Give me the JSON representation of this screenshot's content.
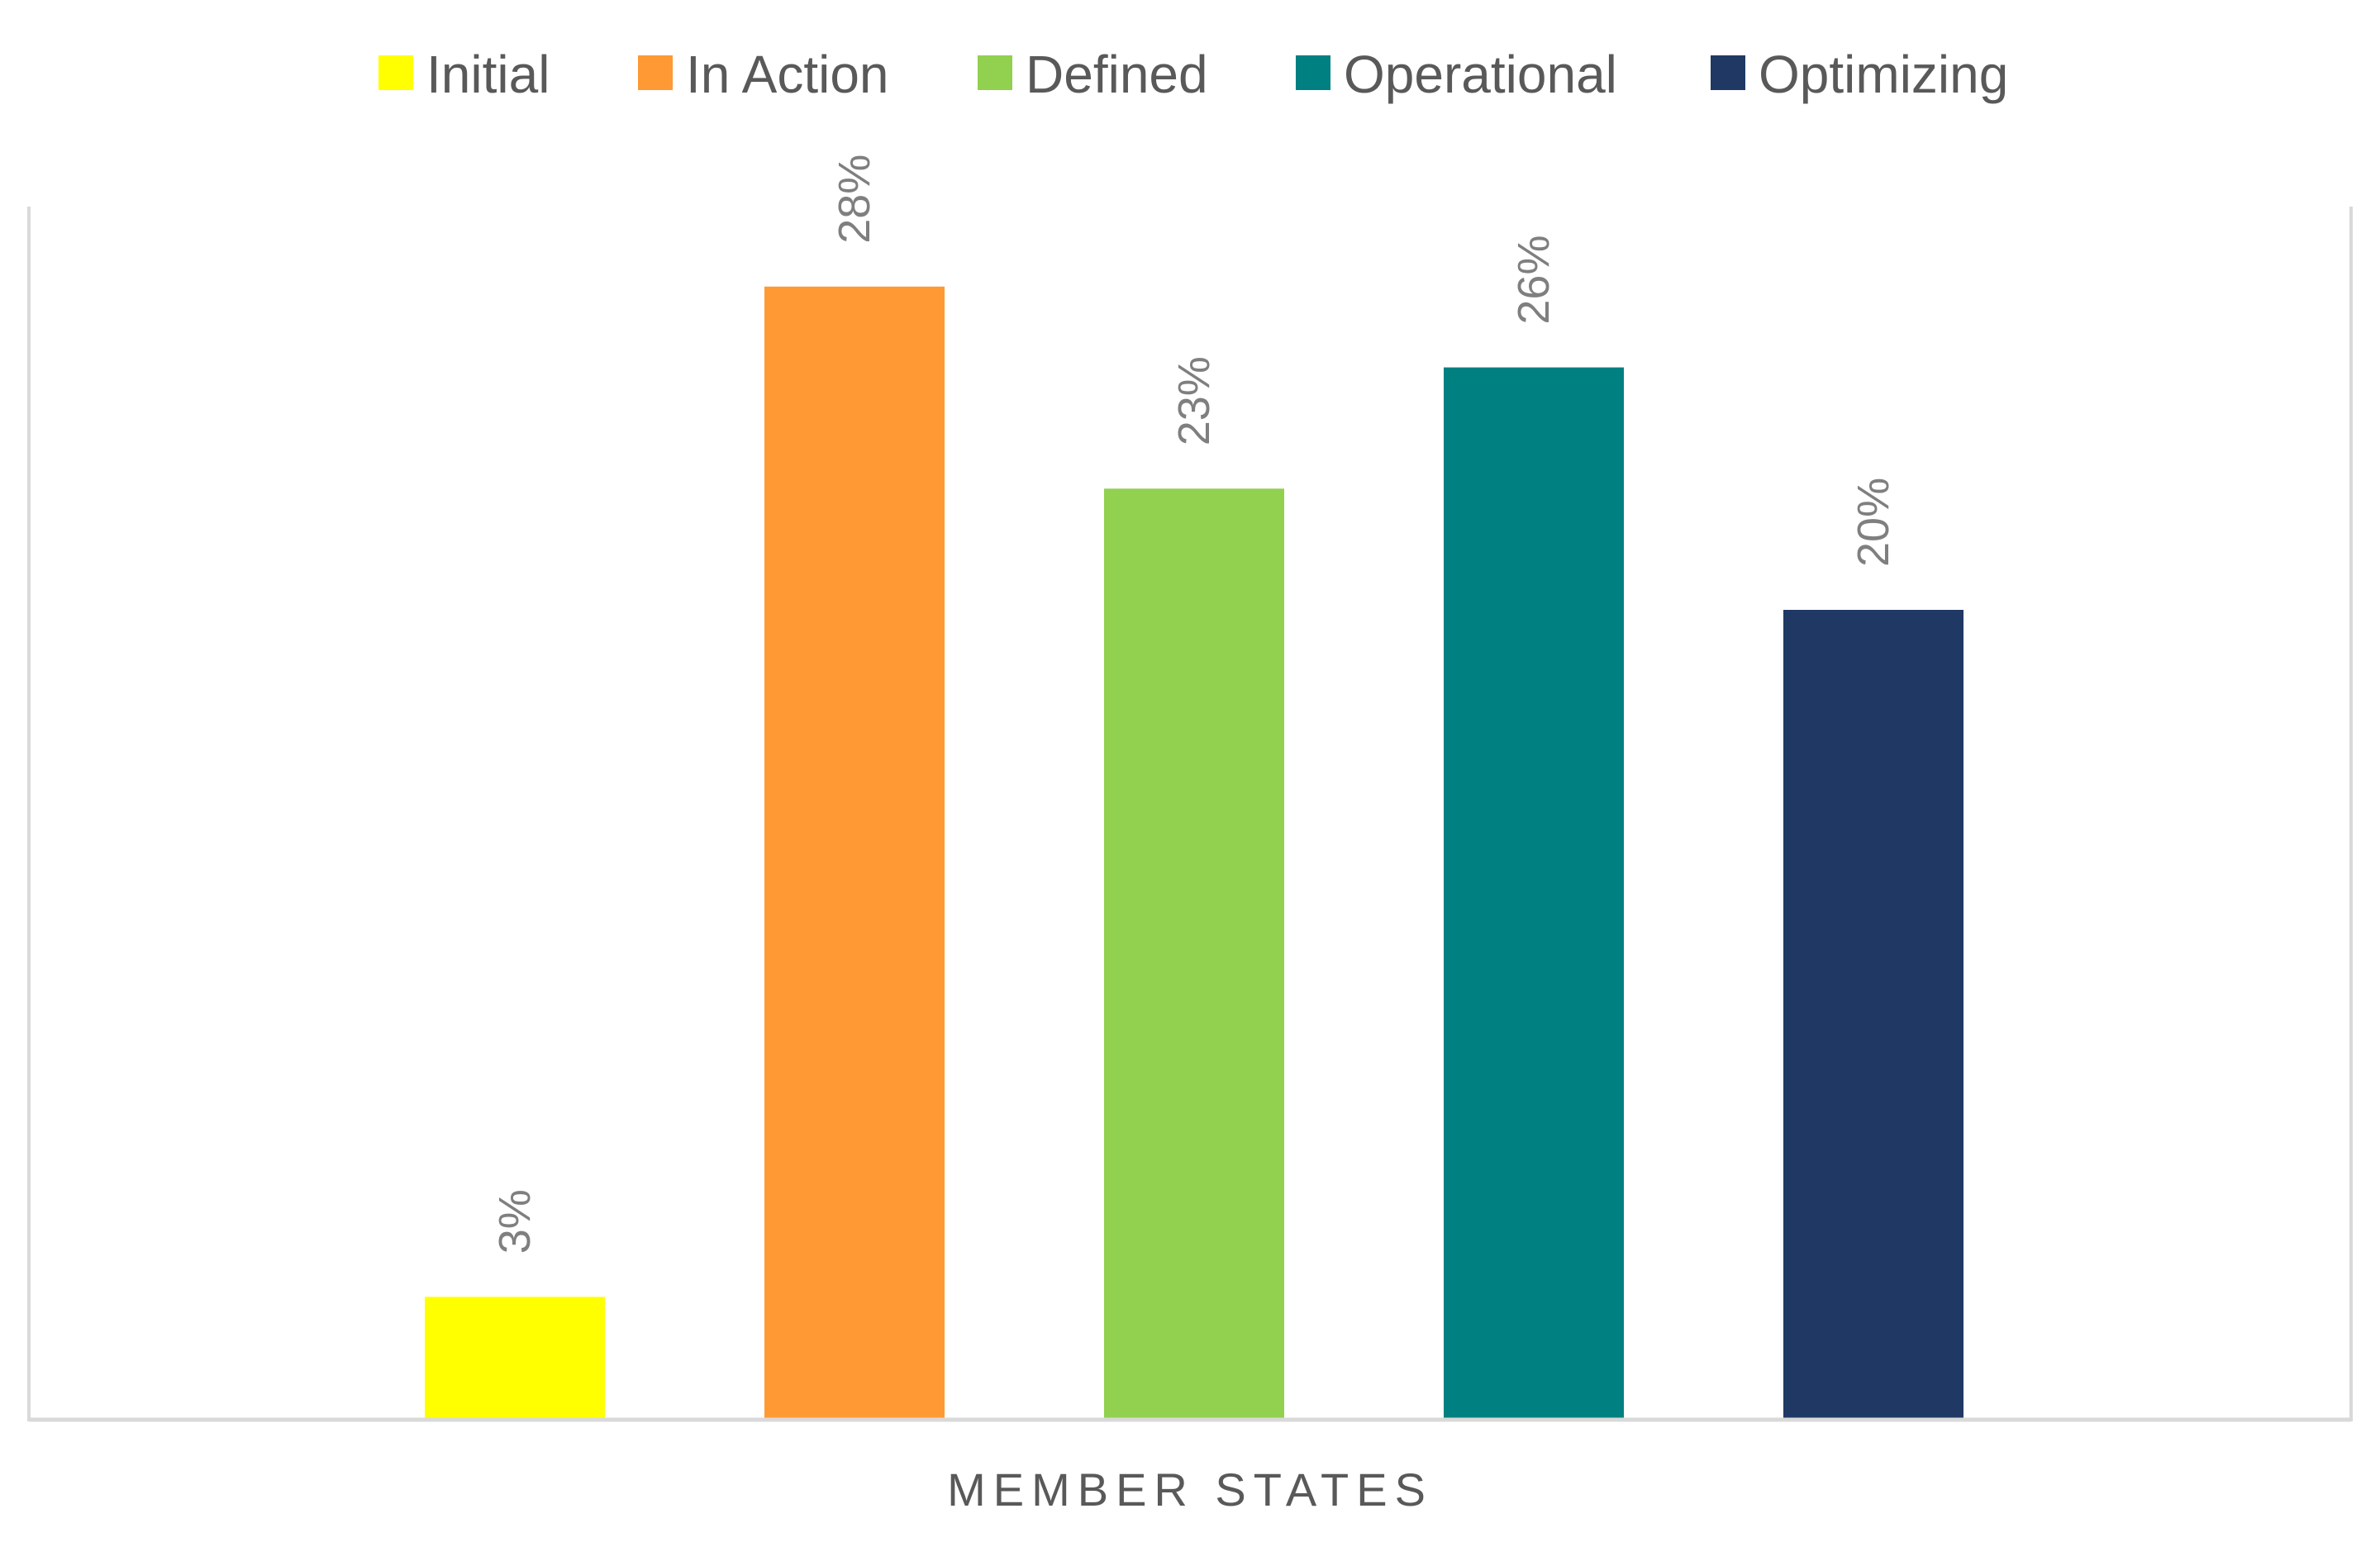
{
  "chart_data": {
    "type": "bar",
    "title": "",
    "xlabel": "MEMBER STATES",
    "ylabel": "",
    "ylim": [
      0,
      30
    ],
    "grid": false,
    "legend_position": "top",
    "categories": [
      "Initial",
      "In Action",
      "Defined",
      "Operational",
      "Optimizing"
    ],
    "values": [
      3,
      28,
      23,
      26,
      20
    ],
    "value_labels": [
      "3%",
      "28%",
      "23%",
      "26%",
      "20%"
    ],
    "unit": "%",
    "colors": [
      "#ffff00",
      "#ff9933",
      "#92d050",
      "#008080",
      "#203864"
    ],
    "legend": [
      {
        "name": "Initial",
        "color": "#ffff00"
      },
      {
        "name": "In Action",
        "color": "#ff9933"
      },
      {
        "name": "Defined",
        "color": "#92d050"
      },
      {
        "name": "Operational",
        "color": "#008080"
      },
      {
        "name": "Optimizing",
        "color": "#203864"
      }
    ]
  }
}
